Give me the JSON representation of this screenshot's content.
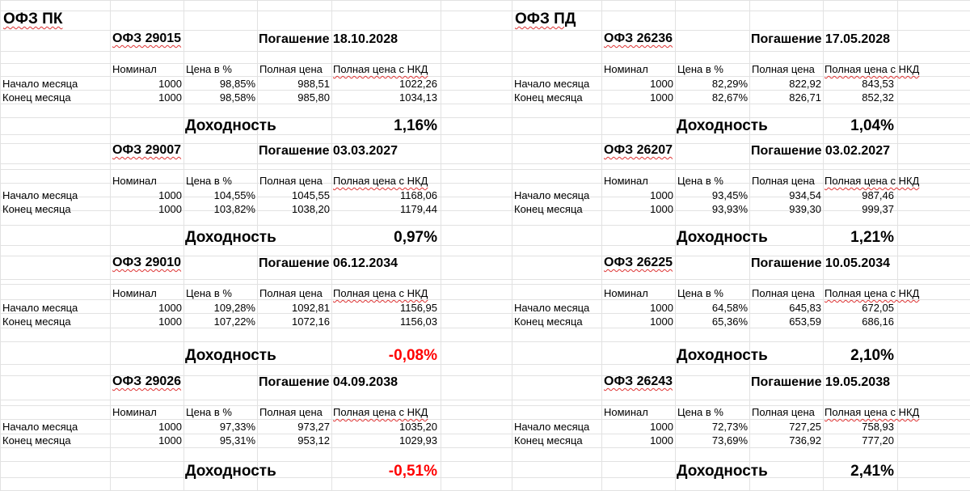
{
  "left": {
    "title": "ОФЗ ПК",
    "blocks": [
      {
        "bond": "ОФЗ 29015",
        "maturity": "Погашение 18.10.2028",
        "start": {
          "nominal": "1000",
          "price_pct": "98,85%",
          "full_price": "988,51",
          "full_price_nkd": "1022,26"
        },
        "end": {
          "nominal": "1000",
          "price_pct": "98,58%",
          "full_price": "985,80",
          "full_price_nkd": "1034,13"
        },
        "yield": "1,16%"
      },
      {
        "bond": "ОФЗ 29007",
        "maturity": "Погашение 03.03.2027",
        "start": {
          "nominal": "1000",
          "price_pct": "104,55%",
          "full_price": "1045,55",
          "full_price_nkd": "1168,06"
        },
        "end": {
          "nominal": "1000",
          "price_pct": "103,82%",
          "full_price": "1038,20",
          "full_price_nkd": "1179,44"
        },
        "yield": "0,97%"
      },
      {
        "bond": "ОФЗ 29010",
        "maturity": "Погашение 06.12.2034",
        "start": {
          "nominal": "1000",
          "price_pct": "109,28%",
          "full_price": "1092,81",
          "full_price_nkd": "1156,95"
        },
        "end": {
          "nominal": "1000",
          "price_pct": "107,22%",
          "full_price": "1072,16",
          "full_price_nkd": "1156,03"
        },
        "yield": "-0,08%"
      },
      {
        "bond": "ОФЗ 29026",
        "maturity": "Погашение 04.09.2038",
        "start": {
          "nominal": "1000",
          "price_pct": "97,33%",
          "full_price": "973,27",
          "full_price_nkd": "1035,20"
        },
        "end": {
          "nominal": "1000",
          "price_pct": "95,31%",
          "full_price": "953,12",
          "full_price_nkd": "1029,93"
        },
        "yield": "-0,51%"
      }
    ]
  },
  "right": {
    "title": "ОФЗ ПД",
    "blocks": [
      {
        "bond": "ОФЗ 26236",
        "maturity": "Погашение 17.05.2028",
        "start": {
          "nominal": "1000",
          "price_pct": "82,29%",
          "full_price": "822,92",
          "full_price_nkd": "843,53"
        },
        "end": {
          "nominal": "1000",
          "price_pct": "82,67%",
          "full_price": "826,71",
          "full_price_nkd": "852,32"
        },
        "yield": "1,04%"
      },
      {
        "bond": "ОФЗ 26207",
        "maturity": "Погашение 03.02.2027",
        "start": {
          "nominal": "1000",
          "price_pct": "93,45%",
          "full_price": "934,54",
          "full_price_nkd": "987,46"
        },
        "end": {
          "nominal": "1000",
          "price_pct": "93,93%",
          "full_price": "939,30",
          "full_price_nkd": "999,37"
        },
        "yield": "1,21%"
      },
      {
        "bond": "ОФЗ 26225",
        "maturity": "Погашение 10.05.2034",
        "start": {
          "nominal": "1000",
          "price_pct": "64,58%",
          "full_price": "645,83",
          "full_price_nkd": "672,05"
        },
        "end": {
          "nominal": "1000",
          "price_pct": "65,36%",
          "full_price": "653,59",
          "full_price_nkd": "686,16"
        },
        "yield": "2,10%"
      },
      {
        "bond": "ОФЗ 26243",
        "maturity": "Погашение 19.05.2038",
        "start": {
          "nominal": "1000",
          "price_pct": "72,73%",
          "full_price": "727,25",
          "full_price_nkd": "758,93"
        },
        "end": {
          "nominal": "1000",
          "price_pct": "73,69%",
          "full_price": "736,92",
          "full_price_nkd": "777,20"
        },
        "yield": "2,41%"
      }
    ]
  },
  "labels": {
    "nominal": "Номинал",
    "price_pct": "Цена в %",
    "full_price": "Полная цена",
    "full_price_nkd": "Полная цена с НКД",
    "start_month": "Начало месяца",
    "end_month": "Конец месяца",
    "yield": "Доходность"
  },
  "colors": {
    "negative": "#ff0000",
    "grid": "#e2e2e2"
  }
}
